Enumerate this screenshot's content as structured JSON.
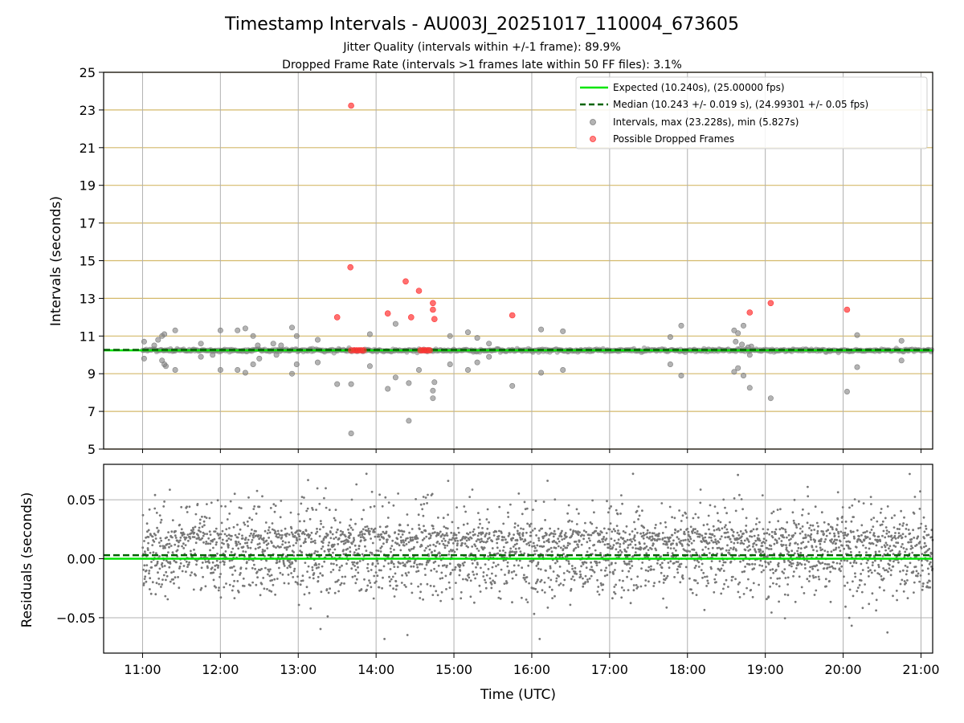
{
  "figure": {
    "title": "Timestamp Intervals - AU003J_20251017_110004_673605",
    "subtitle_line1": "Jitter Quality (intervals within +/-1 frame): 89.9%",
    "subtitle_line2": "Dropped Frame Rate (intervals >1 frames late within 50 FF files): 3.1%",
    "xlabel": "Time (UTC)",
    "x_tick_labels": [
      "11:00",
      "12:00",
      "13:00",
      "14:00",
      "15:00",
      "16:00",
      "17:00",
      "18:00",
      "19:00",
      "20:00",
      "21:00"
    ]
  },
  "colors": {
    "expected_line": "#00e600",
    "median_line": "#006400",
    "intervals": "#808080",
    "dropped": "#ff3333",
    "hgrid_top": "#d4b96a",
    "vgrid": "#b0b0b0",
    "bottom_grid": "#b0b0b0"
  },
  "chart_data": [
    {
      "type": "scatter",
      "name": "top",
      "ylabel": "Intervals (seconds)",
      "xlim_hours": [
        10.5,
        21.15
      ],
      "ylim": [
        5,
        25
      ],
      "y_ticks": [
        5,
        7,
        9,
        11,
        13,
        15,
        17,
        19,
        21,
        23,
        25
      ],
      "y_tick_labels": [
        "5",
        "7",
        "9",
        "11",
        "13",
        "15",
        "17",
        "19",
        "21",
        "23",
        "25"
      ],
      "expected_value": 10.24,
      "median_value": 10.243,
      "legend": {
        "expected": "Expected (10.240s), (25.00000 fps)",
        "median": "Median (10.243 +/- 0.019 s), (24.99301 +/- 0.05 fps)",
        "intervals": "Intervals, max (23.228s), min (5.827s)",
        "dropped": "Possible Dropped Frames"
      },
      "dropped_points": [
        [
          13.68,
          23.23
        ],
        [
          13.67,
          14.65
        ],
        [
          13.5,
          12.0
        ],
        [
          14.15,
          12.2
        ],
        [
          14.38,
          13.9
        ],
        [
          14.45,
          12.0
        ],
        [
          14.55,
          13.4
        ],
        [
          14.73,
          12.75
        ],
        [
          14.73,
          12.4
        ],
        [
          14.75,
          11.9
        ],
        [
          15.75,
          12.1
        ],
        [
          18.8,
          12.25
        ],
        [
          19.07,
          12.75
        ],
        [
          20.05,
          12.4
        ],
        [
          13.68,
          10.24
        ],
        [
          13.72,
          10.24
        ],
        [
          13.75,
          10.24
        ],
        [
          13.78,
          10.24
        ],
        [
          13.81,
          10.24
        ],
        [
          13.84,
          10.24
        ],
        [
          14.57,
          10.24
        ],
        [
          14.6,
          10.24
        ],
        [
          14.63,
          10.24
        ],
        [
          14.66,
          10.24
        ],
        [
          14.69,
          10.24
        ]
      ],
      "interval_outliers": [
        [
          11.02,
          10.7
        ],
        [
          11.02,
          9.8
        ],
        [
          11.15,
          10.5
        ],
        [
          11.2,
          10.8
        ],
        [
          11.25,
          11.0
        ],
        [
          11.28,
          11.1
        ],
        [
          11.25,
          9.7
        ],
        [
          11.28,
          9.5
        ],
        [
          11.3,
          9.4
        ],
        [
          11.42,
          11.3
        ],
        [
          11.42,
          9.2
        ],
        [
          11.75,
          10.6
        ],
        [
          11.75,
          9.9
        ],
        [
          11.9,
          10.0
        ],
        [
          12.0,
          11.3
        ],
        [
          12.0,
          9.2
        ],
        [
          12.22,
          11.3
        ],
        [
          12.22,
          9.2
        ],
        [
          12.32,
          11.4
        ],
        [
          12.32,
          9.05
        ],
        [
          12.42,
          11.0
        ],
        [
          12.42,
          9.5
        ],
        [
          12.48,
          10.5
        ],
        [
          12.5,
          9.8
        ],
        [
          12.68,
          10.6
        ],
        [
          12.72,
          10.0
        ],
        [
          12.78,
          10.5
        ],
        [
          12.92,
          11.45
        ],
        [
          12.92,
          9.0
        ],
        [
          12.98,
          11.0
        ],
        [
          12.98,
          9.5
        ],
        [
          13.25,
          10.8
        ],
        [
          13.25,
          9.6
        ],
        [
          13.5,
          8.45
        ],
        [
          13.68,
          8.45
        ],
        [
          13.68,
          5.83
        ],
        [
          13.92,
          11.1
        ],
        [
          13.92,
          9.4
        ],
        [
          14.15,
          8.2
        ],
        [
          14.25,
          11.65
        ],
        [
          14.25,
          8.8
        ],
        [
          14.42,
          8.5
        ],
        [
          14.42,
          6.5
        ],
        [
          14.55,
          9.2
        ],
        [
          14.73,
          8.1
        ],
        [
          14.73,
          7.7
        ],
        [
          14.75,
          8.55
        ],
        [
          14.95,
          11.0
        ],
        [
          14.95,
          9.5
        ],
        [
          15.18,
          11.2
        ],
        [
          15.18,
          9.2
        ],
        [
          15.3,
          10.9
        ],
        [
          15.3,
          9.6
        ],
        [
          15.45,
          10.6
        ],
        [
          15.45,
          9.9
        ],
        [
          15.75,
          8.35
        ],
        [
          16.12,
          11.35
        ],
        [
          16.12,
          9.05
        ],
        [
          16.4,
          11.25
        ],
        [
          16.4,
          9.2
        ],
        [
          17.78,
          10.95
        ],
        [
          17.78,
          9.5
        ],
        [
          17.92,
          11.55
        ],
        [
          17.92,
          8.9
        ],
        [
          18.6,
          11.3
        ],
        [
          18.65,
          11.15
        ],
        [
          18.6,
          9.1
        ],
        [
          18.65,
          9.3
        ],
        [
          18.62,
          10.7
        ],
        [
          18.7,
          10.55
        ],
        [
          18.72,
          11.55
        ],
        [
          18.72,
          8.9
        ],
        [
          18.78,
          10.4
        ],
        [
          18.8,
          10.0
        ],
        [
          18.8,
          8.25
        ],
        [
          18.82,
          10.45
        ],
        [
          19.07,
          7.7
        ],
        [
          20.05,
          8.05
        ],
        [
          20.18,
          11.05
        ],
        [
          20.18,
          9.35
        ],
        [
          20.75,
          10.75
        ],
        [
          20.75,
          9.7
        ]
      ]
    },
    {
      "type": "scatter",
      "name": "residuals",
      "ylabel": "Residuals (seconds)",
      "xlim_hours": [
        10.5,
        21.15
      ],
      "ylim": [
        -0.08,
        0.08
      ],
      "y_ticks": [
        -0.05,
        0.0,
        0.05
      ],
      "y_tick_labels": [
        "−0.05",
        "0.00",
        "0.05"
      ],
      "expected_value": 0.0,
      "median_value": 0.003,
      "x_start_hours": 11.0,
      "x_end_hours": 21.15,
      "n_points": 3300,
      "spread_sd": 0.019
    }
  ]
}
